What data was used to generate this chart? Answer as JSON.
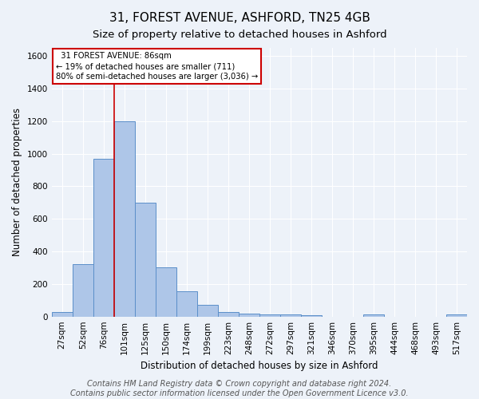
{
  "title1": "31, FOREST AVENUE, ASHFORD, TN25 4GB",
  "title2": "Size of property relative to detached houses in Ashford",
  "xlabel": "Distribution of detached houses by size in Ashford",
  "ylabel": "Number of detached properties",
  "categories": [
    "27sqm",
    "52sqm",
    "76sqm",
    "101sqm",
    "125sqm",
    "150sqm",
    "174sqm",
    "199sqm",
    "223sqm",
    "248sqm",
    "272sqm",
    "297sqm",
    "321sqm",
    "346sqm",
    "370sqm",
    "395sqm",
    "444sqm",
    "468sqm",
    "493sqm",
    "517sqm"
  ],
  "values": [
    30,
    320,
    970,
    1200,
    700,
    300,
    155,
    70,
    30,
    20,
    15,
    15,
    10,
    0,
    0,
    12,
    0,
    0,
    0,
    12
  ],
  "bar_color": "#aec6e8",
  "bar_edge_color": "#5b8fc9",
  "vline_x_index": 2.5,
  "vline_color": "#cc0000",
  "annotation_text": "  31 FOREST AVENUE: 86sqm  \n← 19% of detached houses are smaller (711)\n80% of semi-detached houses are larger (3,036) →",
  "annotation_box_color": "#ffffff",
  "annotation_box_edge": "#cc0000",
  "ylim": [
    0,
    1650
  ],
  "yticks": [
    0,
    200,
    400,
    600,
    800,
    1000,
    1200,
    1400,
    1600
  ],
  "bg_color": "#edf2f9",
  "plot_bg_color": "#edf2f9",
  "footer1": "Contains HM Land Registry data © Crown copyright and database right 2024.",
  "footer2": "Contains public sector information licensed under the Open Government Licence v3.0.",
  "title1_fontsize": 11,
  "title2_fontsize": 9.5,
  "axis_fontsize": 8.5,
  "tick_fontsize": 7.5,
  "footer_fontsize": 7
}
